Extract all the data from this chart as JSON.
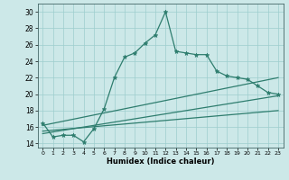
{
  "xlabel": "Humidex (Indice chaleur)",
  "bg_color": "#cce8e8",
  "line_color": "#2e7d6e",
  "xlim": [
    -0.5,
    23.5
  ],
  "ylim": [
    13.5,
    31
  ],
  "yticks": [
    14,
    16,
    18,
    20,
    22,
    24,
    26,
    28,
    30
  ],
  "xticks": [
    0,
    1,
    2,
    3,
    4,
    5,
    6,
    7,
    8,
    9,
    10,
    11,
    12,
    13,
    14,
    15,
    16,
    17,
    18,
    19,
    20,
    21,
    22,
    23
  ],
  "main_line": {
    "x": [
      0,
      1,
      2,
      3,
      4,
      5,
      6,
      7,
      8,
      9,
      10,
      11,
      12,
      13,
      14,
      15,
      16,
      17,
      18,
      19,
      20,
      21,
      22,
      23
    ],
    "y": [
      16.5,
      14.8,
      15.0,
      15.0,
      14.2,
      15.8,
      18.2,
      22.0,
      24.5,
      25.0,
      26.2,
      27.2,
      30.0,
      25.2,
      25.0,
      24.8,
      24.8,
      22.8,
      22.2,
      22.0,
      21.8,
      21.0,
      20.2,
      20.0
    ]
  },
  "diag_lines": [
    {
      "x": [
        0,
        23
      ],
      "y": [
        15.2,
        19.8
      ]
    },
    {
      "x": [
        0,
        23
      ],
      "y": [
        15.5,
        18.0
      ]
    },
    {
      "x": [
        0,
        23
      ],
      "y": [
        16.2,
        22.0
      ]
    }
  ]
}
